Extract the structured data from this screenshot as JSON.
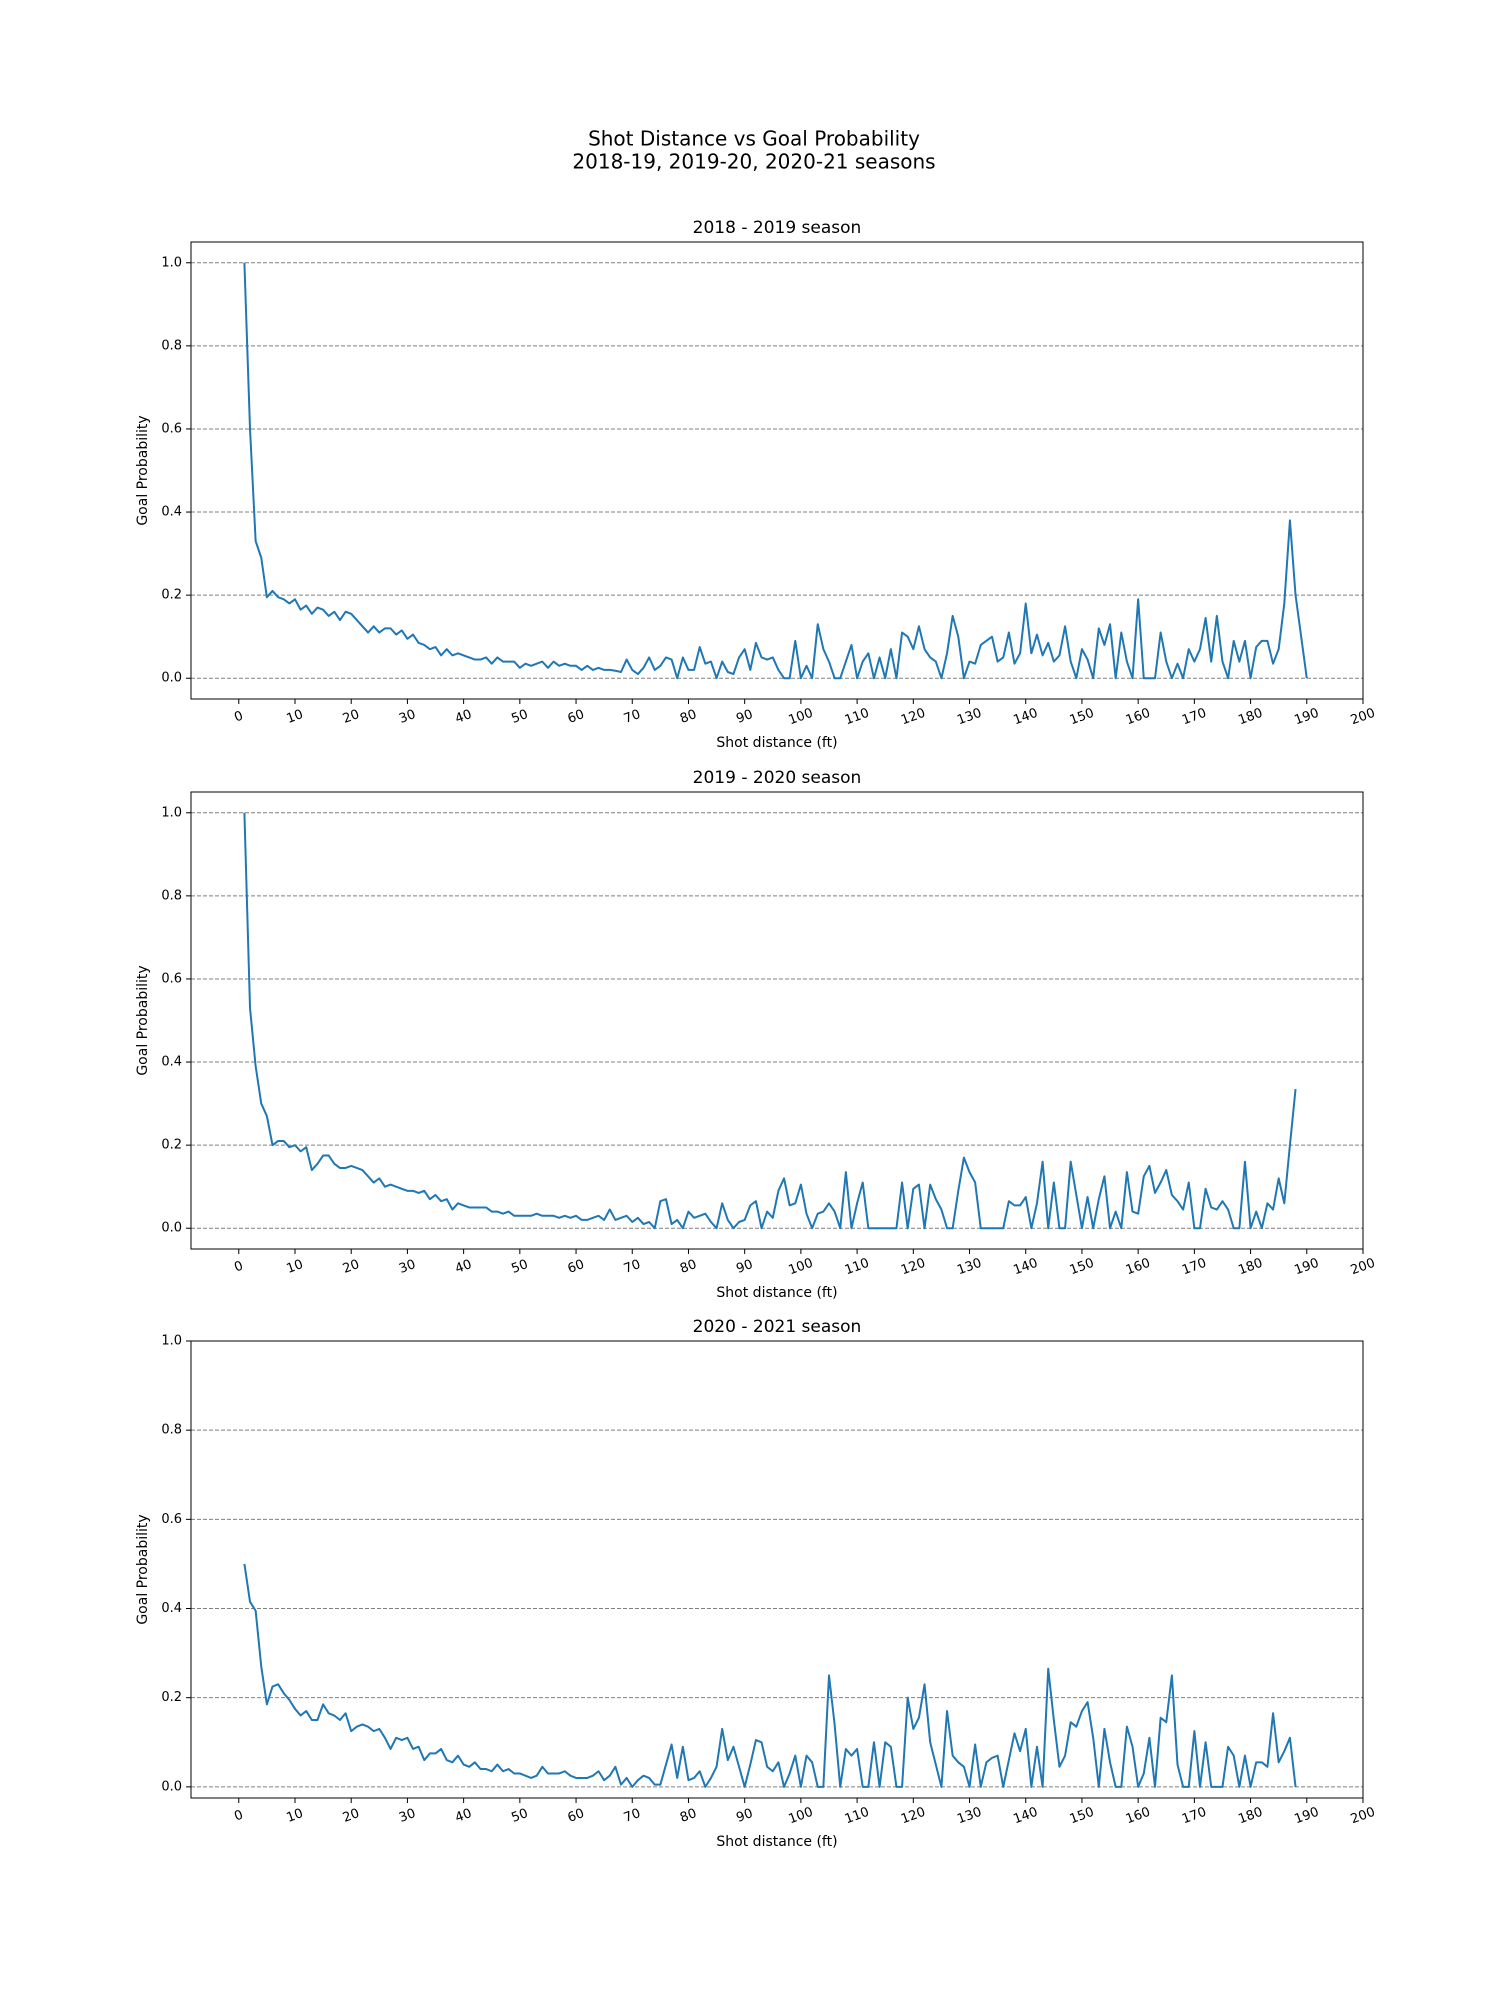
{
  "title": "Shot Distance vs Goal Probability",
  "subtitle": "2018-19, 2019-20, 2020-21 seasons",
  "chart_data": [
    {
      "type": "line",
      "title": "2018 - 2019 season",
      "x_label": "Shot distance (ft)",
      "y_label": "Goal Probability",
      "color": "#1f77b4",
      "grid": true,
      "xlim": [
        -8.5,
        200
      ],
      "ylim": [
        -0.05,
        1.05
      ],
      "xticks": [
        0,
        10,
        20,
        30,
        40,
        50,
        60,
        70,
        80,
        90,
        100,
        110,
        120,
        130,
        140,
        150,
        160,
        170,
        180,
        190,
        200
      ],
      "yticks": [
        {
          "value": 0,
          "label": "0.0"
        },
        {
          "value": 0.2,
          "label": "0.2"
        },
        {
          "value": 0.4,
          "label": "0.4"
        },
        {
          "value": 0.6,
          "label": "0.6"
        },
        {
          "value": 0.8,
          "label": "0.8"
        },
        {
          "value": 1,
          "label": "1.0"
        }
      ],
      "x": [
        1,
        2,
        3,
        4,
        5,
        6,
        7,
        8,
        9,
        10,
        11,
        12,
        13,
        14,
        15,
        16,
        17,
        18,
        19,
        20,
        21,
        22,
        23,
        24,
        25,
        26,
        27,
        28,
        29,
        30,
        31,
        32,
        33,
        34,
        35,
        36,
        37,
        38,
        39,
        40,
        41,
        42,
        43,
        44,
        45,
        46,
        47,
        48,
        49,
        50,
        51,
        52,
        53,
        54,
        55,
        56,
        57,
        58,
        59,
        60,
        61,
        62,
        63,
        64,
        65,
        66,
        67,
        68,
        69,
        70,
        71,
        72,
        73,
        74,
        75,
        76,
        77,
        78,
        79,
        80,
        81,
        82,
        83,
        84,
        85,
        86,
        87,
        88,
        89,
        90,
        91,
        92,
        93,
        94,
        95,
        96,
        97,
        98,
        99,
        100,
        101,
        102,
        103,
        104,
        105,
        106,
        107,
        108,
        109,
        110,
        111,
        112,
        113,
        114,
        115,
        116,
        117,
        118,
        119,
        120,
        121,
        122,
        123,
        124,
        125,
        126,
        127,
        128,
        129,
        130,
        131,
        132,
        133,
        134,
        135,
        136,
        137,
        138,
        139,
        140,
        141,
        142,
        143,
        144,
        145,
        146,
        147,
        148,
        149,
        150,
        151,
        152,
        153,
        154,
        155,
        156,
        157,
        158,
        159,
        160,
        161,
        162,
        163,
        164,
        165,
        166,
        167,
        168,
        169,
        170,
        171,
        172,
        173,
        174,
        175,
        176,
        177,
        178,
        179,
        180,
        181,
        182,
        183,
        184,
        185,
        186,
        187,
        188,
        189,
        190
      ],
      "values": [
        1.0,
        0.6,
        0.33,
        0.29,
        0.195,
        0.21,
        0.195,
        0.19,
        0.18,
        0.19,
        0.165,
        0.175,
        0.155,
        0.17,
        0.165,
        0.15,
        0.16,
        0.14,
        0.16,
        0.155,
        0.14,
        0.125,
        0.11,
        0.125,
        0.11,
        0.12,
        0.12,
        0.105,
        0.115,
        0.095,
        0.105,
        0.085,
        0.08,
        0.07,
        0.075,
        0.055,
        0.07,
        0.055,
        0.06,
        0.055,
        0.05,
        0.045,
        0.045,
        0.05,
        0.035,
        0.05,
        0.04,
        0.04,
        0.04,
        0.025,
        0.035,
        0.03,
        0.035,
        0.04,
        0.025,
        0.04,
        0.03,
        0.035,
        0.03,
        0.03,
        0.02,
        0.03,
        0.02,
        0.025,
        0.02,
        0.02,
        0.018,
        0.015,
        0.045,
        0.02,
        0.01,
        0.025,
        0.05,
        0.02,
        0.03,
        0.05,
        0.045,
        0,
        0.05,
        0.02,
        0.02,
        0.075,
        0.035,
        0.04,
        0,
        0.04,
        0.015,
        0.01,
        0.05,
        0.07,
        0.02,
        0.085,
        0.05,
        0.045,
        0.05,
        0.02,
        0,
        0,
        0.09,
        0,
        0.03,
        0,
        0.13,
        0.07,
        0.04,
        0,
        0,
        0.04,
        0.08,
        0,
        0.04,
        0.06,
        0,
        0.05,
        0,
        0.07,
        0,
        0.11,
        0.1,
        0.07,
        0.125,
        0.07,
        0.05,
        0.04,
        0,
        0.06,
        0.15,
        0.1,
        0,
        0.04,
        0.035,
        0.08,
        0.09,
        0.1,
        0.04,
        0.05,
        0.11,
        0.035,
        0.06,
        0.18,
        0.06,
        0.105,
        0.055,
        0.085,
        0.04,
        0.055,
        0.125,
        0.04,
        0,
        0.07,
        0.045,
        0,
        0.12,
        0.08,
        0.13,
        0,
        0.11,
        0.04,
        0,
        0.19,
        0,
        0,
        0,
        0.11,
        0.04,
        0,
        0.035,
        0,
        0.07,
        0.04,
        0.07,
        0.145,
        0.04,
        0.15,
        0.04,
        0,
        0.09,
        0.04,
        0.09,
        0,
        0.075,
        0.09,
        0.09,
        0.035,
        0.07,
        0.18,
        0.38,
        0.2,
        0.1,
        0
      ]
    },
    {
      "type": "line",
      "title": "2019 - 2020 season",
      "x_label": "Shot distance (ft)",
      "y_label": "Goal Probability",
      "color": "#1f77b4",
      "grid": true,
      "xlim": [
        -8.5,
        200
      ],
      "ylim": [
        -0.05,
        1.05
      ],
      "xticks": [
        0,
        10,
        20,
        30,
        40,
        50,
        60,
        70,
        80,
        90,
        100,
        110,
        120,
        130,
        140,
        150,
        160,
        170,
        180,
        190,
        200
      ],
      "yticks": [
        {
          "value": 0,
          "label": "0.0"
        },
        {
          "value": 0.2,
          "label": "0.2"
        },
        {
          "value": 0.4,
          "label": "0.4"
        },
        {
          "value": 0.6,
          "label": "0.6"
        },
        {
          "value": 0.8,
          "label": "0.8"
        },
        {
          "value": 1,
          "label": "1.0"
        }
      ],
      "x": [
        1,
        2,
        3,
        4,
        5,
        6,
        7,
        8,
        9,
        10,
        11,
        12,
        13,
        14,
        15,
        16,
        17,
        18,
        19,
        20,
        21,
        22,
        23,
        24,
        25,
        26,
        27,
        28,
        29,
        30,
        31,
        32,
        33,
        34,
        35,
        36,
        37,
        38,
        39,
        40,
        41,
        42,
        43,
        44,
        45,
        46,
        47,
        48,
        49,
        50,
        51,
        52,
        53,
        54,
        55,
        56,
        57,
        58,
        59,
        60,
        61,
        62,
        63,
        64,
        65,
        66,
        67,
        68,
        69,
        70,
        71,
        72,
        73,
        74,
        75,
        76,
        77,
        78,
        79,
        80,
        81,
        82,
        83,
        84,
        85,
        86,
        87,
        88,
        89,
        90,
        91,
        92,
        93,
        94,
        95,
        96,
        97,
        98,
        99,
        100,
        101,
        102,
        103,
        104,
        105,
        106,
        107,
        108,
        109,
        110,
        111,
        112,
        113,
        114,
        115,
        116,
        117,
        118,
        119,
        120,
        121,
        122,
        123,
        124,
        125,
        126,
        127,
        128,
        129,
        130,
        131,
        132,
        133,
        134,
        135,
        136,
        137,
        138,
        139,
        140,
        141,
        142,
        143,
        144,
        145,
        146,
        147,
        148,
        149,
        150,
        151,
        152,
        153,
        154,
        155,
        156,
        157,
        158,
        159,
        160,
        161,
        162,
        163,
        164,
        165,
        166,
        167,
        168,
        169,
        170,
        171,
        172,
        173,
        174,
        175,
        176,
        177,
        178,
        179,
        180,
        181,
        182,
        183,
        184,
        185,
        186,
        187,
        188
      ],
      "values": [
        1.0,
        0.53,
        0.39,
        0.3,
        0.27,
        0.2,
        0.21,
        0.21,
        0.195,
        0.2,
        0.185,
        0.195,
        0.14,
        0.155,
        0.175,
        0.175,
        0.155,
        0.145,
        0.145,
        0.15,
        0.145,
        0.14,
        0.125,
        0.11,
        0.12,
        0.1,
        0.105,
        0.1,
        0.095,
        0.09,
        0.09,
        0.085,
        0.09,
        0.07,
        0.08,
        0.065,
        0.07,
        0.045,
        0.06,
        0.055,
        0.05,
        0.05,
        0.05,
        0.05,
        0.04,
        0.04,
        0.035,
        0.04,
        0.03,
        0.03,
        0.03,
        0.03,
        0.035,
        0.03,
        0.03,
        0.03,
        0.025,
        0.03,
        0.025,
        0.03,
        0.02,
        0.02,
        0.025,
        0.03,
        0.02,
        0.045,
        0.02,
        0.025,
        0.03,
        0.015,
        0.025,
        0.01,
        0.015,
        0,
        0.065,
        0.07,
        0.01,
        0.02,
        0,
        0.04,
        0.025,
        0.03,
        0.035,
        0.015,
        0,
        0.06,
        0.02,
        0,
        0.015,
        0.02,
        0.055,
        0.065,
        0,
        0.04,
        0.025,
        0.09,
        0.12,
        0.055,
        0.06,
        0.105,
        0.035,
        0,
        0.035,
        0.04,
        0.06,
        0.04,
        0,
        0.135,
        0,
        0.06,
        0.11,
        0,
        0,
        0,
        0,
        0,
        0,
        0.11,
        0,
        0.095,
        0.105,
        0,
        0.105,
        0.07,
        0.045,
        0,
        0,
        0.09,
        0.17,
        0.135,
        0.11,
        0,
        0,
        0,
        0,
        0,
        0.065,
        0.055,
        0.055,
        0.075,
        0,
        0.06,
        0.16,
        0,
        0.11,
        0,
        0,
        0.16,
        0.08,
        0,
        0.075,
        0,
        0.07,
        0.125,
        0,
        0.04,
        0,
        0.135,
        0.04,
        0.035,
        0.125,
        0.15,
        0.085,
        0.11,
        0.14,
        0.08,
        0.065,
        0.045,
        0.11,
        0,
        0,
        0.095,
        0.05,
        0.045,
        0.065,
        0.045,
        0,
        0,
        0.16,
        0,
        0.04,
        0,
        0.06,
        0.045,
        0.12,
        0.06,
        0.2,
        0.335
      ]
    },
    {
      "type": "line",
      "title": "2020 - 2021 season",
      "x_label": "Shot distance (ft)",
      "y_label": "Goal Probability",
      "color": "#1f77b4",
      "grid": true,
      "xlim": [
        -8.5,
        200
      ],
      "ylim": [
        -0.025,
        1.0
      ],
      "xticks": [
        0,
        10,
        20,
        30,
        40,
        50,
        60,
        70,
        80,
        90,
        100,
        110,
        120,
        130,
        140,
        150,
        160,
        170,
        180,
        190,
        200
      ],
      "yticks": [
        {
          "value": 0,
          "label": "0.0"
        },
        {
          "value": 0.2,
          "label": "0.2"
        },
        {
          "value": 0.4,
          "label": "0.4"
        },
        {
          "value": 0.6,
          "label": "0.6"
        },
        {
          "value": 0.8,
          "label": "0.8"
        },
        {
          "value": 1,
          "label": "1.0"
        }
      ],
      "x": [
        1,
        2,
        3,
        4,
        5,
        6,
        7,
        8,
        9,
        10,
        11,
        12,
        13,
        14,
        15,
        16,
        17,
        18,
        19,
        20,
        21,
        22,
        23,
        24,
        25,
        26,
        27,
        28,
        29,
        30,
        31,
        32,
        33,
        34,
        35,
        36,
        37,
        38,
        39,
        40,
        41,
        42,
        43,
        44,
        45,
        46,
        47,
        48,
        49,
        50,
        51,
        52,
        53,
        54,
        55,
        56,
        57,
        58,
        59,
        60,
        61,
        62,
        63,
        64,
        65,
        66,
        67,
        68,
        69,
        70,
        71,
        72,
        73,
        74,
        75,
        76,
        77,
        78,
        79,
        80,
        81,
        82,
        83,
        84,
        85,
        86,
        87,
        88,
        89,
        90,
        91,
        92,
        93,
        94,
        95,
        96,
        97,
        98,
        99,
        100,
        101,
        102,
        103,
        104,
        105,
        106,
        107,
        108,
        109,
        110,
        111,
        112,
        113,
        114,
        115,
        116,
        117,
        118,
        119,
        120,
        121,
        122,
        123,
        124,
        125,
        126,
        127,
        128,
        129,
        130,
        131,
        132,
        133,
        134,
        135,
        136,
        137,
        138,
        139,
        140,
        141,
        142,
        143,
        144,
        145,
        146,
        147,
        148,
        149,
        150,
        151,
        152,
        153,
        154,
        155,
        156,
        157,
        158,
        159,
        160,
        161,
        162,
        163,
        164,
        165,
        166,
        167,
        168,
        169,
        170,
        171,
        172,
        173,
        174,
        175,
        176,
        177,
        178,
        179,
        180,
        181,
        182,
        183,
        184,
        185,
        186,
        187,
        188
      ],
      "values": [
        0.5,
        0.415,
        0.395,
        0.27,
        0.185,
        0.225,
        0.23,
        0.21,
        0.195,
        0.175,
        0.16,
        0.17,
        0.15,
        0.15,
        0.185,
        0.165,
        0.16,
        0.15,
        0.165,
        0.125,
        0.135,
        0.14,
        0.135,
        0.125,
        0.13,
        0.11,
        0.085,
        0.11,
        0.105,
        0.11,
        0.085,
        0.09,
        0.06,
        0.075,
        0.075,
        0.085,
        0.06,
        0.055,
        0.07,
        0.05,
        0.045,
        0.055,
        0.04,
        0.04,
        0.035,
        0.05,
        0.035,
        0.04,
        0.03,
        0.03,
        0.025,
        0.02,
        0.025,
        0.045,
        0.03,
        0.03,
        0.03,
        0.035,
        0.025,
        0.02,
        0.02,
        0.02,
        0.025,
        0.035,
        0.015,
        0.025,
        0.045,
        0.005,
        0.02,
        0,
        0.015,
        0.025,
        0.02,
        0.005,
        0.005,
        0.05,
        0.095,
        0.02,
        0.09,
        0.015,
        0.02,
        0.035,
        0,
        0.02,
        0.045,
        0.13,
        0.06,
        0.09,
        0.045,
        0,
        0.05,
        0.105,
        0.1,
        0.045,
        0.035,
        0.055,
        0,
        0.03,
        0.07,
        0,
        0.07,
        0.055,
        0,
        0,
        0.25,
        0.14,
        0,
        0.085,
        0.07,
        0.085,
        0,
        0,
        0.1,
        0,
        0.1,
        0.09,
        0,
        0,
        0.2,
        0.13,
        0.155,
        0.23,
        0.1,
        0.05,
        0,
        0.17,
        0.07,
        0.055,
        0.045,
        0,
        0.095,
        0,
        0.055,
        0.065,
        0.07,
        0,
        0.06,
        0.12,
        0.08,
        0.13,
        0,
        0.09,
        0,
        0.265,
        0.15,
        0.045,
        0.07,
        0.145,
        0.135,
        0.17,
        0.19,
        0.11,
        0,
        0.13,
        0.055,
        0,
        0,
        0.135,
        0.09,
        0,
        0.03,
        0.11,
        0,
        0.155,
        0.145,
        0.25,
        0.05,
        0,
        0,
        0.125,
        0,
        0.1,
        0,
        0,
        0,
        0.09,
        0.07,
        0,
        0.07,
        0,
        0.055,
        0.055,
        0.045,
        0.165,
        0.055,
        0.08,
        0.11,
        0
      ]
    }
  ]
}
